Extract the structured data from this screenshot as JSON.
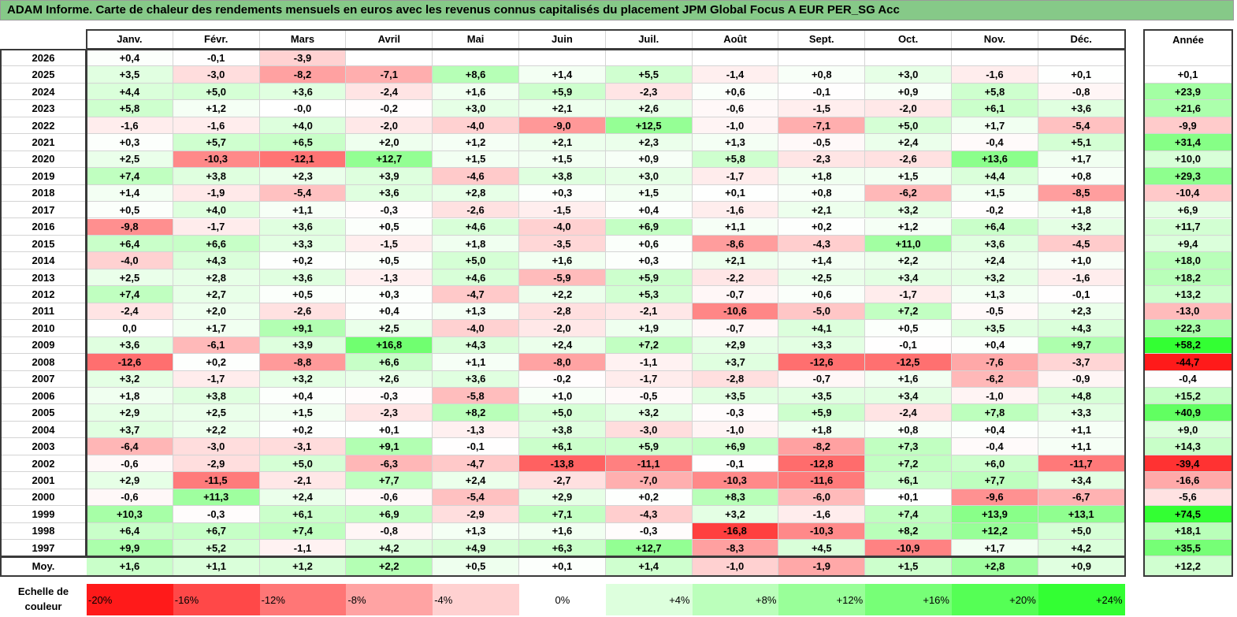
{
  "title": "ADAM Informe. Carte de chaleur des rendements mensuels en euros avec les revenus connus capitalisés du placement JPM Global Focus A EUR PER_SG Acc",
  "chart_data": {
    "type": "heatmap",
    "title": "ADAM Informe. Carte de chaleur des rendements mensuels en euros avec les revenus connus capitalisés du placement JPM Global Focus A EUR PER_SG Acc",
    "months": [
      "Janv.",
      "Févr.",
      "Mars",
      "Avril",
      "Mai",
      "Juin",
      "Juil.",
      "Août",
      "Sept.",
      "Oct.",
      "Nov.",
      "Déc."
    ],
    "year_header": "Année",
    "average_label": "Moy.",
    "rows": [
      {
        "year": "2026",
        "values": [
          "+0,4",
          "-0,1",
          "-3,9",
          "",
          "",
          "",
          "",
          "",
          "",
          "",
          "",
          ""
        ],
        "annual": ""
      },
      {
        "year": "2025",
        "values": [
          "+3,5",
          "-3,0",
          "-8,2",
          "-7,1",
          "+8,6",
          "+1,4",
          "+5,5",
          "-1,4",
          "+0,8",
          "+3,0",
          "-1,6",
          "+0,1"
        ],
        "annual": "+0,1"
      },
      {
        "year": "2024",
        "values": [
          "+4,4",
          "+5,0",
          "+3,6",
          "-2,4",
          "+1,6",
          "+5,9",
          "-2,3",
          "+0,6",
          "-0,1",
          "+0,9",
          "+5,8",
          "-0,8"
        ],
        "annual": "+23,9"
      },
      {
        "year": "2023",
        "values": [
          "+5,8",
          "+1,2",
          "-0,0",
          "-0,2",
          "+3,0",
          "+2,1",
          "+2,6",
          "-0,6",
          "-1,5",
          "-2,0",
          "+6,1",
          "+3,6"
        ],
        "annual": "+21,6"
      },
      {
        "year": "2022",
        "values": [
          "-1,6",
          "-1,6",
          "+4,0",
          "-2,0",
          "-4,0",
          "-9,0",
          "+12,5",
          "-1,0",
          "-7,1",
          "+5,0",
          "+1,7",
          "-5,4"
        ],
        "annual": "-9,9"
      },
      {
        "year": "2021",
        "values": [
          "+0,3",
          "+5,7",
          "+6,5",
          "+2,0",
          "+1,2",
          "+2,1",
          "+2,3",
          "+1,3",
          "-0,5",
          "+2,4",
          "-0,4",
          "+5,1"
        ],
        "annual": "+31,4"
      },
      {
        "year": "2020",
        "values": [
          "+2,5",
          "-10,3",
          "-12,1",
          "+12,7",
          "+1,5",
          "+1,5",
          "+0,9",
          "+5,8",
          "-2,3",
          "-2,6",
          "+13,6",
          "+1,7"
        ],
        "annual": "+10,0"
      },
      {
        "year": "2019",
        "values": [
          "+7,4",
          "+3,8",
          "+2,3",
          "+3,9",
          "-4,6",
          "+3,8",
          "+3,0",
          "-1,7",
          "+1,8",
          "+1,5",
          "+4,4",
          "+0,8"
        ],
        "annual": "+29,3"
      },
      {
        "year": "2018",
        "values": [
          "+1,4",
          "-1,9",
          "-5,4",
          "+3,6",
          "+2,8",
          "+0,3",
          "+1,5",
          "+0,1",
          "+0,8",
          "-6,2",
          "+1,5",
          "-8,5"
        ],
        "annual": "-10,4"
      },
      {
        "year": "2017",
        "values": [
          "+0,5",
          "+4,0",
          "+1,1",
          "-0,3",
          "-2,6",
          "-1,5",
          "+0,4",
          "-1,6",
          "+2,1",
          "+3,2",
          "-0,2",
          "+1,8"
        ],
        "annual": "+6,9"
      },
      {
        "year": "2016",
        "values": [
          "-9,8",
          "-1,7",
          "+3,6",
          "+0,5",
          "+4,6",
          "-4,0",
          "+6,9",
          "+1,1",
          "+0,2",
          "+1,2",
          "+6,4",
          "+3,2"
        ],
        "annual": "+11,7"
      },
      {
        "year": "2015",
        "values": [
          "+6,4",
          "+6,6",
          "+3,3",
          "-1,5",
          "+1,8",
          "-3,5",
          "+0,6",
          "-8,6",
          "-4,3",
          "+11,0",
          "+3,6",
          "-4,5"
        ],
        "annual": "+9,4"
      },
      {
        "year": "2014",
        "values": [
          "-4,0",
          "+4,3",
          "+0,2",
          "+0,5",
          "+5,0",
          "+1,6",
          "+0,3",
          "+2,1",
          "+1,4",
          "+2,2",
          "+2,4",
          "+1,0"
        ],
        "annual": "+18,0"
      },
      {
        "year": "2013",
        "values": [
          "+2,5",
          "+2,8",
          "+3,6",
          "-1,3",
          "+4,6",
          "-5,9",
          "+5,9",
          "-2,2",
          "+2,5",
          "+3,4",
          "+3,2",
          "-1,6"
        ],
        "annual": "+18,2"
      },
      {
        "year": "2012",
        "values": [
          "+7,4",
          "+2,7",
          "+0,5",
          "+0,3",
          "-4,7",
          "+2,2",
          "+5,3",
          "-0,7",
          "+0,6",
          "-1,7",
          "+1,3",
          "-0,1"
        ],
        "annual": "+13,2"
      },
      {
        "year": "2011",
        "values": [
          "-2,4",
          "+2,0",
          "-2,6",
          "+0,4",
          "+1,3",
          "-2,8",
          "-2,1",
          "-10,6",
          "-5,0",
          "+7,2",
          "-0,5",
          "+2,3"
        ],
        "annual": "-13,0"
      },
      {
        "year": "2010",
        "values": [
          "0,0",
          "+1,7",
          "+9,1",
          "+2,5",
          "-4,0",
          "-2,0",
          "+1,9",
          "-0,7",
          "+4,1",
          "+0,5",
          "+3,5",
          "+4,3"
        ],
        "annual": "+22,3"
      },
      {
        "year": "2009",
        "values": [
          "+3,6",
          "-6,1",
          "+3,9",
          "+16,8",
          "+4,3",
          "+2,4",
          "+7,2",
          "+2,9",
          "+3,3",
          "-0,1",
          "+0,4",
          "+9,7"
        ],
        "annual": "+58,2"
      },
      {
        "year": "2008",
        "values": [
          "-12,6",
          "+0,2",
          "-8,8",
          "+6,6",
          "+1,1",
          "-8,0",
          "-1,1",
          "+3,7",
          "-12,6",
          "-12,5",
          "-7,6",
          "-3,7"
        ],
        "annual": "-44,7"
      },
      {
        "year": "2007",
        "values": [
          "+3,2",
          "-1,7",
          "+3,2",
          "+2,6",
          "+3,6",
          "-0,2",
          "-1,7",
          "-2,8",
          "-0,7",
          "+1,6",
          "-6,2",
          "-0,9"
        ],
        "annual": "-0,4"
      },
      {
        "year": "2006",
        "values": [
          "+1,8",
          "+3,8",
          "+0,4",
          "-0,3",
          "-5,8",
          "+1,0",
          "-0,5",
          "+3,5",
          "+3,5",
          "+3,4",
          "-1,0",
          "+4,8"
        ],
        "annual": "+15,2"
      },
      {
        "year": "2005",
        "values": [
          "+2,9",
          "+2,5",
          "+1,5",
          "-2,3",
          "+8,2",
          "+5,0",
          "+3,2",
          "-0,3",
          "+5,9",
          "-2,4",
          "+7,8",
          "+3,3"
        ],
        "annual": "+40,9"
      },
      {
        "year": "2004",
        "values": [
          "+3,7",
          "+2,2",
          "+0,2",
          "+0,1",
          "-1,3",
          "+3,8",
          "-3,0",
          "-1,0",
          "+1,8",
          "+0,8",
          "+0,4",
          "+1,1"
        ],
        "annual": "+9,0"
      },
      {
        "year": "2003",
        "values": [
          "-6,4",
          "-3,0",
          "-3,1",
          "+9,1",
          "-0,1",
          "+6,1",
          "+5,9",
          "+6,9",
          "-8,2",
          "+7,3",
          "-0,4",
          "+1,1"
        ],
        "annual": "+14,3"
      },
      {
        "year": "2002",
        "values": [
          "-0,6",
          "-2,9",
          "+5,0",
          "-6,3",
          "-4,7",
          "-13,8",
          "-11,1",
          "-0,1",
          "-12,8",
          "+7,2",
          "+6,0",
          "-11,7"
        ],
        "annual": "-39,4"
      },
      {
        "year": "2001",
        "values": [
          "+2,9",
          "-11,5",
          "-2,1",
          "+7,7",
          "+2,4",
          "-2,7",
          "-7,0",
          "-10,3",
          "-11,6",
          "+6,1",
          "+7,7",
          "+3,4"
        ],
        "annual": "-16,6"
      },
      {
        "year": "2000",
        "values": [
          "-0,6",
          "+11,3",
          "+2,4",
          "-0,6",
          "-5,4",
          "+2,9",
          "+0,2",
          "+8,3",
          "-6,0",
          "+0,1",
          "-9,6",
          "-6,7"
        ],
        "annual": "-5,6"
      },
      {
        "year": "1999",
        "values": [
          "+10,3",
          "-0,3",
          "+6,1",
          "+6,9",
          "-2,9",
          "+7,1",
          "-4,3",
          "+3,2",
          "-1,6",
          "+7,4",
          "+13,9",
          "+13,1"
        ],
        "annual": "+74,5"
      },
      {
        "year": "1998",
        "values": [
          "+6,4",
          "+6,7",
          "+7,4",
          "-0,8",
          "+1,3",
          "+1,6",
          "-0,3",
          "-16,8",
          "-10,3",
          "+8,2",
          "+12,2",
          "+5,0"
        ],
        "annual": "+18,1"
      },
      {
        "year": "1997",
        "values": [
          "+9,9",
          "+5,2",
          "-1,1",
          "+4,2",
          "+4,9",
          "+6,3",
          "+12,7",
          "-8,3",
          "+4,5",
          "-10,9",
          "+1,7",
          "+4,2"
        ],
        "annual": "+35,5"
      }
    ],
    "averages": [
      "+1,6",
      "+1,1",
      "+1,2",
      "+2,2",
      "+0,5",
      "+0,1",
      "+1,4",
      "-1,0",
      "-1,9",
      "+1,5",
      "+2,8",
      "+0,9"
    ],
    "average_annual": "+12,2",
    "legend_label": "Echelle de couleur",
    "legend_steps": [
      {
        "label": "-20%",
        "value": -20
      },
      {
        "label": "-16%",
        "value": -16
      },
      {
        "label": "-12%",
        "value": -12
      },
      {
        "label": "-8%",
        "value": -8
      },
      {
        "label": "-4%",
        "value": -4
      },
      {
        "label": "0%",
        "value": 0
      },
      {
        "label": "+4%",
        "value": 4
      },
      {
        "label": "+8%",
        "value": 8
      },
      {
        "label": "+12%",
        "value": 12
      },
      {
        "label": "+16%",
        "value": 16
      },
      {
        "label": "+20%",
        "value": 20
      },
      {
        "label": "+24%",
        "value": 24
      }
    ],
    "colors": {
      "negative_max": "#ff1a1a",
      "positive_max": "#33ff33",
      "neutral": "#ffffff",
      "title_background": "#86c988"
    }
  }
}
